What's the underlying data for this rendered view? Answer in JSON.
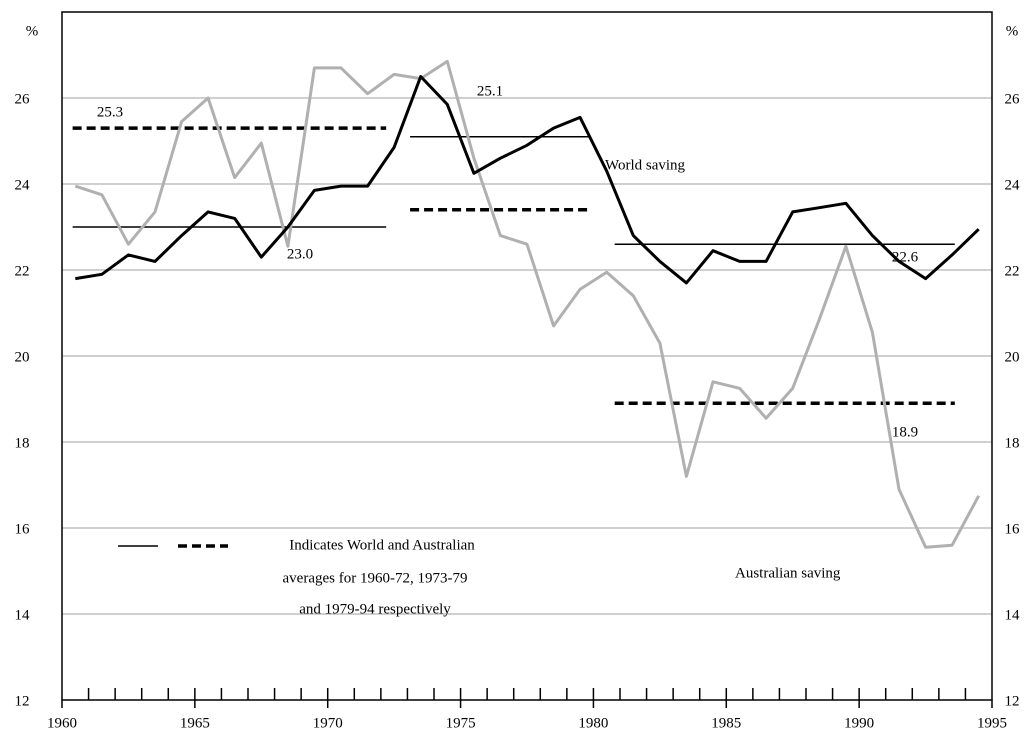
{
  "chart_data": {
    "type": "line",
    "y_unit_left": "%",
    "y_unit_right": "%",
    "xlim": [
      1960,
      1995
    ],
    "xticks": [
      1960,
      1965,
      1970,
      1975,
      1980,
      1985,
      1990,
      1995
    ],
    "ylim": [
      12,
      28
    ],
    "yticks": [
      12,
      14,
      16,
      18,
      20,
      22,
      24,
      26
    ],
    "y2lim": [
      12,
      28
    ],
    "y2ticks": [
      12,
      14,
      16,
      18,
      20,
      22,
      24,
      26
    ],
    "grid": true,
    "x": [
      1960.5,
      1961.5,
      1962.5,
      1963.5,
      1964.5,
      1965.5,
      1966.5,
      1967.5,
      1968.5,
      1969.5,
      1970.5,
      1971.5,
      1972.5,
      1973.5,
      1974.5,
      1975.5,
      1976.5,
      1977.5,
      1978.5,
      1979.5,
      1980.5,
      1981.5,
      1982.5,
      1983.5,
      1984.5,
      1985.5,
      1986.5,
      1987.5,
      1988.5,
      1989.5,
      1990.5,
      1991.5,
      1992.5,
      1993.5,
      1994.5
    ],
    "series": [
      {
        "name": "World saving",
        "color": "#000000",
        "values": [
          21.8,
          21.9,
          22.35,
          22.2,
          22.8,
          23.35,
          23.2,
          22.3,
          23.0,
          23.85,
          23.95,
          23.95,
          24.85,
          26.5,
          25.85,
          24.25,
          24.6,
          24.9,
          25.3,
          25.55,
          24.3,
          22.8,
          22.2,
          21.7,
          22.45,
          22.2,
          22.2,
          23.35,
          23.45,
          23.55,
          22.8,
          22.2,
          21.8,
          22.35,
          22.95
        ]
      },
      {
        "name": "Australian saving",
        "color": "#b0b0b0",
        "values": [
          23.95,
          23.75,
          22.6,
          23.35,
          25.45,
          26.0,
          24.15,
          24.95,
          22.55,
          26.7,
          26.7,
          26.1,
          26.55,
          26.45,
          26.85,
          24.6,
          22.8,
          22.6,
          20.7,
          21.55,
          21.95,
          21.4,
          20.3,
          17.2,
          19.4,
          19.25,
          18.55,
          19.25,
          20.85,
          22.55,
          20.55,
          16.9,
          15.55,
          15.6,
          16.75
        ]
      }
    ],
    "averages": [
      {
        "series": "World saving",
        "x": [
          1960.4,
          1972.2
        ],
        "value": 23.0,
        "value_label": "23.0"
      },
      {
        "series": "World saving",
        "x": [
          1973.1,
          1979.9
        ],
        "value": 25.1,
        "value_label": "25.1"
      },
      {
        "series": "World saving",
        "x": [
          1980.8,
          1993.6
        ],
        "value": 22.6,
        "value_label": "22.6"
      },
      {
        "series": "Australian saving",
        "x": [
          1960.4,
          1972.2
        ],
        "value": 25.3,
        "value_label": "25.3"
      },
      {
        "series": "Australian saving",
        "x": [
          1973.1,
          1979.9
        ],
        "value": 23.4
      },
      {
        "series": "Australian saving",
        "x": [
          1980.8,
          1993.6
        ],
        "value": 18.9,
        "value_label": "18.9"
      }
    ],
    "legend_text": [
      "Indicates World and Australian",
      "averages for 1960-72, 1973-79",
      "and 1979-94 respectively"
    ]
  }
}
